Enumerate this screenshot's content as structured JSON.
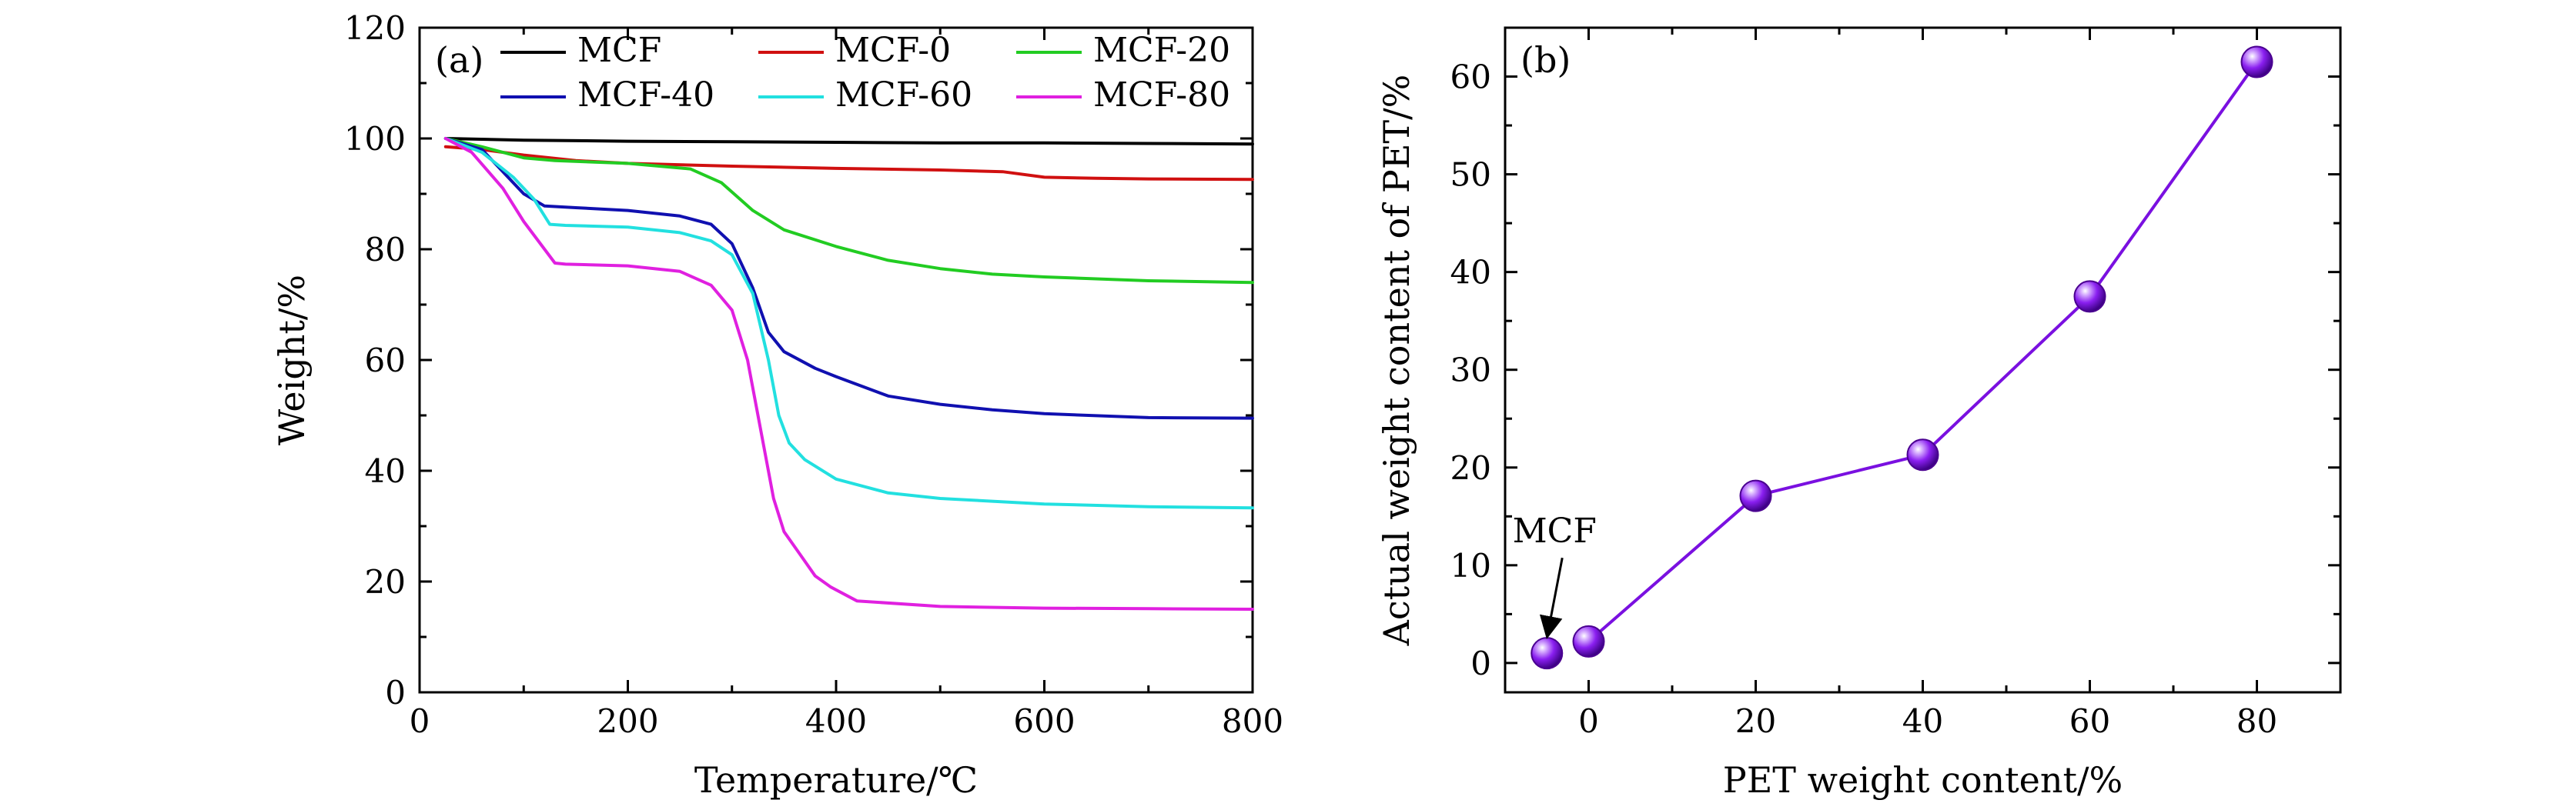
{
  "colors": {
    "MCF": "#000000",
    "MCF-0": "#d01010",
    "MCF-20": "#22cc22",
    "MCF-40": "#1010b0",
    "MCF-60": "#22e0e0",
    "MCF-80": "#e020e0",
    "scatter": "#7a10e0"
  },
  "chart_data": [
    {
      "type": "line",
      "panel_label": "(a)",
      "title": "",
      "xlabel": "Temperature/℃",
      "ylabel": "Weight/%",
      "xlim": [
        0,
        800
      ],
      "ylim": [
        0,
        120
      ],
      "xticks": [
        0,
        200,
        400,
        600,
        800
      ],
      "yticks": [
        0,
        20,
        40,
        60,
        80,
        100,
        120
      ],
      "grid": false,
      "legend_position": "top",
      "series": [
        {
          "name": "MCF",
          "color": "MCF",
          "x": [
            25,
            100,
            200,
            300,
            400,
            500,
            600,
            700,
            800
          ],
          "y": [
            100,
            99.7,
            99.5,
            99.4,
            99.3,
            99.2,
            99.2,
            99.1,
            99.0
          ]
        },
        {
          "name": "MCF-0",
          "color": "MCF-0",
          "x": [
            25,
            60,
            100,
            150,
            200,
            300,
            400,
            500,
            560,
            600,
            650,
            700,
            800
          ],
          "y": [
            98.5,
            98,
            97,
            96,
            95.5,
            95,
            94.6,
            94.3,
            94,
            93,
            92.8,
            92.7,
            92.6
          ]
        },
        {
          "name": "MCF-20",
          "color": "MCF-20",
          "x": [
            25,
            60,
            100,
            130,
            200,
            260,
            290,
            320,
            350,
            400,
            450,
            500,
            550,
            600,
            700,
            800
          ],
          "y": [
            100,
            98.5,
            96.5,
            96,
            95.5,
            94.5,
            92,
            87,
            83.5,
            80.5,
            78,
            76.5,
            75.5,
            75,
            74.3,
            74
          ]
        },
        {
          "name": "MCF-40",
          "color": "MCF-40",
          "x": [
            25,
            60,
            80,
            100,
            120,
            150,
            200,
            250,
            280,
            300,
            320,
            335,
            350,
            380,
            400,
            450,
            500,
            550,
            600,
            700,
            800
          ],
          "y": [
            100,
            98,
            94,
            90,
            87.8,
            87.5,
            87,
            86,
            84.5,
            81,
            73,
            65,
            61.5,
            58.5,
            57,
            53.5,
            52,
            51,
            50.3,
            49.6,
            49.5
          ]
        },
        {
          "name": "MCF-60",
          "color": "MCF-60",
          "x": [
            25,
            60,
            90,
            110,
            125,
            140,
            200,
            250,
            280,
            300,
            320,
            335,
            345,
            355,
            370,
            400,
            450,
            500,
            600,
            700,
            800
          ],
          "y": [
            100,
            97.5,
            93,
            89,
            84.5,
            84.3,
            84,
            83,
            81.5,
            79,
            72,
            60,
            50,
            45,
            42,
            38.5,
            36,
            35,
            34,
            33.5,
            33.3
          ]
        },
        {
          "name": "MCF-80",
          "color": "MCF-80",
          "x": [
            25,
            50,
            80,
            100,
            120,
            130,
            140,
            200,
            250,
            280,
            300,
            315,
            330,
            340,
            350,
            365,
            380,
            395,
            420,
            500,
            600,
            700,
            800
          ],
          "y": [
            100,
            97.5,
            91,
            85,
            80,
            77.5,
            77.3,
            77,
            76,
            73.5,
            69,
            60,
            45,
            35,
            29,
            25,
            21,
            19,
            16.5,
            15.5,
            15.2,
            15.1,
            15
          ]
        }
      ]
    },
    {
      "type": "scatter",
      "panel_label": "(b)",
      "title": "",
      "xlabel": "PET weight content/%",
      "ylabel": "Actual weight content of PET/%",
      "xlim": [
        -10,
        90
      ],
      "ylim": [
        -3,
        65
      ],
      "xticks": [
        0,
        20,
        40,
        60,
        80
      ],
      "yticks": [
        0,
        10,
        20,
        30,
        40,
        50,
        60
      ],
      "grid": false,
      "connected": true,
      "annotation": {
        "text": "MCF",
        "points_to_x": -5,
        "points_to_y": 1
      },
      "points": [
        {
          "x": -5,
          "y": 1,
          "connected": false
        },
        {
          "x": 0,
          "y": 2.2,
          "connected": true
        },
        {
          "x": 20,
          "y": 17.1,
          "connected": true
        },
        {
          "x": 40,
          "y": 21.3,
          "connected": true
        },
        {
          "x": 60,
          "y": 37.5,
          "connected": true
        },
        {
          "x": 80,
          "y": 61.5,
          "connected": true
        }
      ]
    }
  ]
}
